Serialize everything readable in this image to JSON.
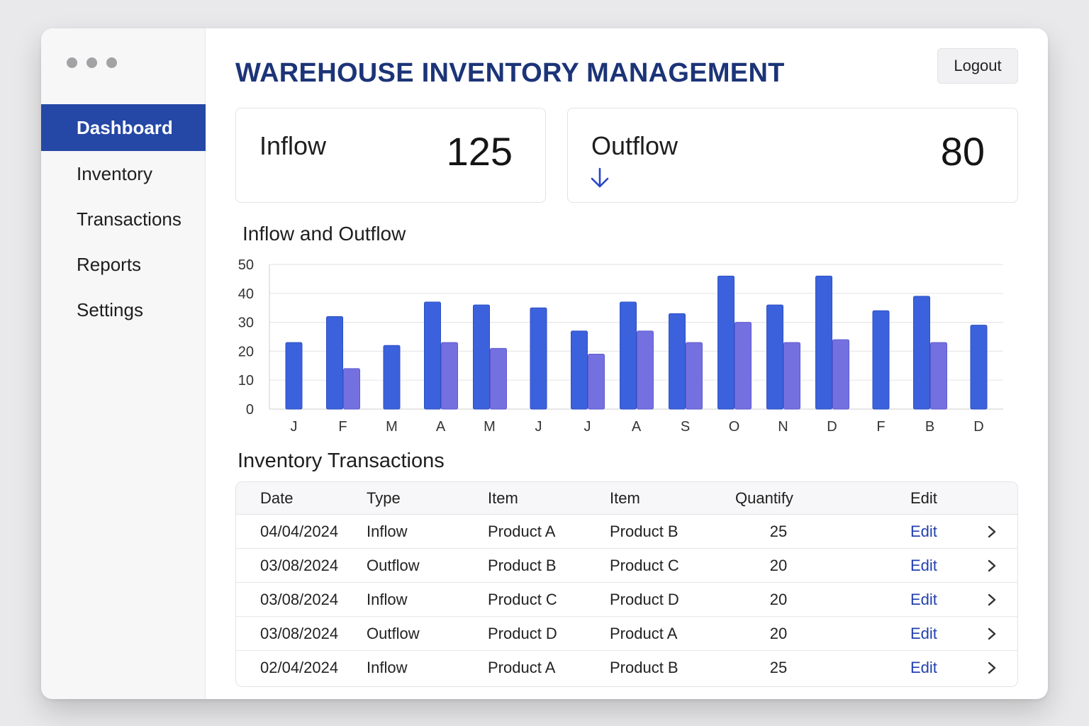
{
  "window": {
    "dots": [
      "dot",
      "dot",
      "dot"
    ]
  },
  "sidebar": {
    "items": [
      {
        "label": "Dashboard",
        "active": true
      },
      {
        "label": "Inventory",
        "active": false
      },
      {
        "label": "Transactions",
        "active": false
      },
      {
        "label": "Reports",
        "active": false
      },
      {
        "label": "Settings",
        "active": false
      }
    ]
  },
  "header": {
    "title": "WAREHOUSE INVENTORY MANAGEMENT",
    "logout_label": "Logout"
  },
  "cards": {
    "inflow": {
      "label": "Inflow",
      "value": "125"
    },
    "outflow": {
      "label": "Outflow",
      "value": "80",
      "icon": "arrow-down-icon"
    }
  },
  "chart_section": {
    "title": "Inflow and Outflow"
  },
  "chart_data": {
    "type": "bar",
    "title": "Inflow and Outflow",
    "categories": [
      "J",
      "F",
      "M",
      "A",
      "M",
      "J",
      "J",
      "A",
      "S",
      "O",
      "N",
      "D",
      "F",
      "B",
      "D"
    ],
    "series": [
      {
        "values": [
          23,
          32,
          22,
          37,
          36,
          35,
          27,
          37,
          33,
          46,
          36,
          46,
          34,
          39,
          29
        ]
      },
      {
        "values": [
          null,
          14,
          null,
          23,
          21,
          null,
          19,
          27,
          23,
          30,
          23,
          24,
          null,
          23,
          null
        ]
      }
    ],
    "ylim": [
      0,
      50
    ],
    "yticks": [
      0,
      10,
      20,
      30,
      40,
      50
    ],
    "grid": true,
    "colors": [
      "#3b62dc",
      "#7470e0"
    ]
  },
  "table": {
    "title": "Inventory Transactions",
    "headers": [
      "Date",
      "Type",
      "Item",
      "Item",
      "Quantify",
      "Edit"
    ],
    "rows": [
      {
        "date": "04/04/2024",
        "type": "Inflow",
        "item1": "Product A",
        "item2": "Product B",
        "qty": "25",
        "edit": "Edit"
      },
      {
        "date": "03/08/2024",
        "type": "Outflow",
        "item1": "Product B",
        "item2": "Product C",
        "qty": "20",
        "edit": "Edit"
      },
      {
        "date": "03/08/2024",
        "type": "Inflow",
        "item1": "Product C",
        "item2": "Product D",
        "qty": "20",
        "edit": "Edit"
      },
      {
        "date": "03/08/2024",
        "type": "Outflow",
        "item1": "Product D",
        "item2": "Product A",
        "qty": "20",
        "edit": "Edit"
      },
      {
        "date": "02/04/2024",
        "type": "Inflow",
        "item1": "Product A",
        "item2": "Product B",
        "qty": "25",
        "edit": "Edit"
      }
    ],
    "row_icon": "chevron-right-icon"
  },
  "colors": {
    "accent": "#2547a6",
    "title": "#1c3478",
    "link": "#2440b0"
  }
}
